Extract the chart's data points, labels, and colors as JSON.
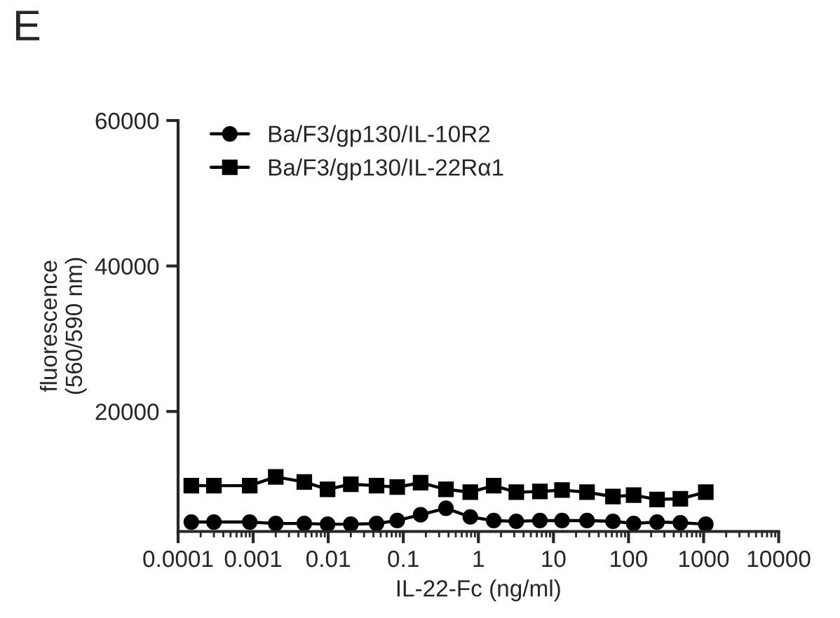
{
  "chart_data": {
    "type": "line",
    "annotations": [
      "E"
    ],
    "xlabel": "IL-22-Fc (ng/ml)",
    "ylabel": "fluorescence\n(560/590 nm)",
    "x": [
      0.00015,
      0.0003,
      0.0009,
      0.002,
      0.0048,
      0.0098,
      0.02,
      0.044,
      0.083,
      0.17,
      0.37,
      0.78,
      1.6,
      3.2,
      6.6,
      13,
      28,
      62,
      117,
      240,
      490,
      1070
    ],
    "series": [
      {
        "name": "Ba/F3/gp130/IL-10R2",
        "color": "#000000",
        "marker": "circle",
        "values": [
          4800,
          4800,
          4800,
          4600,
          4600,
          4500,
          4500,
          4600,
          5000,
          5800,
          6700,
          5500,
          5000,
          4900,
          5000,
          5000,
          5000,
          4900,
          4600,
          4800,
          4700,
          4500
        ]
      },
      {
        "name": "Ba/F3/gp130/IL-22Rα1",
        "color": "#000000",
        "marker": "square",
        "values": [
          9800,
          9800,
          9800,
          11000,
          10300,
          9300,
          10000,
          9800,
          9600,
          10200,
          9300,
          8900,
          9800,
          8900,
          9000,
          9200,
          8900,
          8300,
          8500,
          7900,
          8000,
          8900
        ]
      }
    ],
    "log": "x",
    "xlim": [
      0.0001,
      10000
    ],
    "xticks": [
      {
        "value": 0.0001,
        "label": "0.0001"
      },
      {
        "value": 0.001,
        "label": "0.001"
      },
      {
        "value": 0.01,
        "label": "0.01"
      },
      {
        "value": 0.1,
        "label": "0.1"
      },
      {
        "value": 1,
        "label": "1"
      },
      {
        "value": 10,
        "label": "10"
      },
      {
        "value": 100,
        "label": "100"
      },
      {
        "value": 1000,
        "label": "1000"
      },
      {
        "value": 10000,
        "label": "10000"
      }
    ],
    "ylim": [
      3500,
      60000
    ],
    "yticks": [
      20000,
      40000,
      60000
    ],
    "legend": "top left",
    "grid": false,
    "line_style": "solid"
  }
}
